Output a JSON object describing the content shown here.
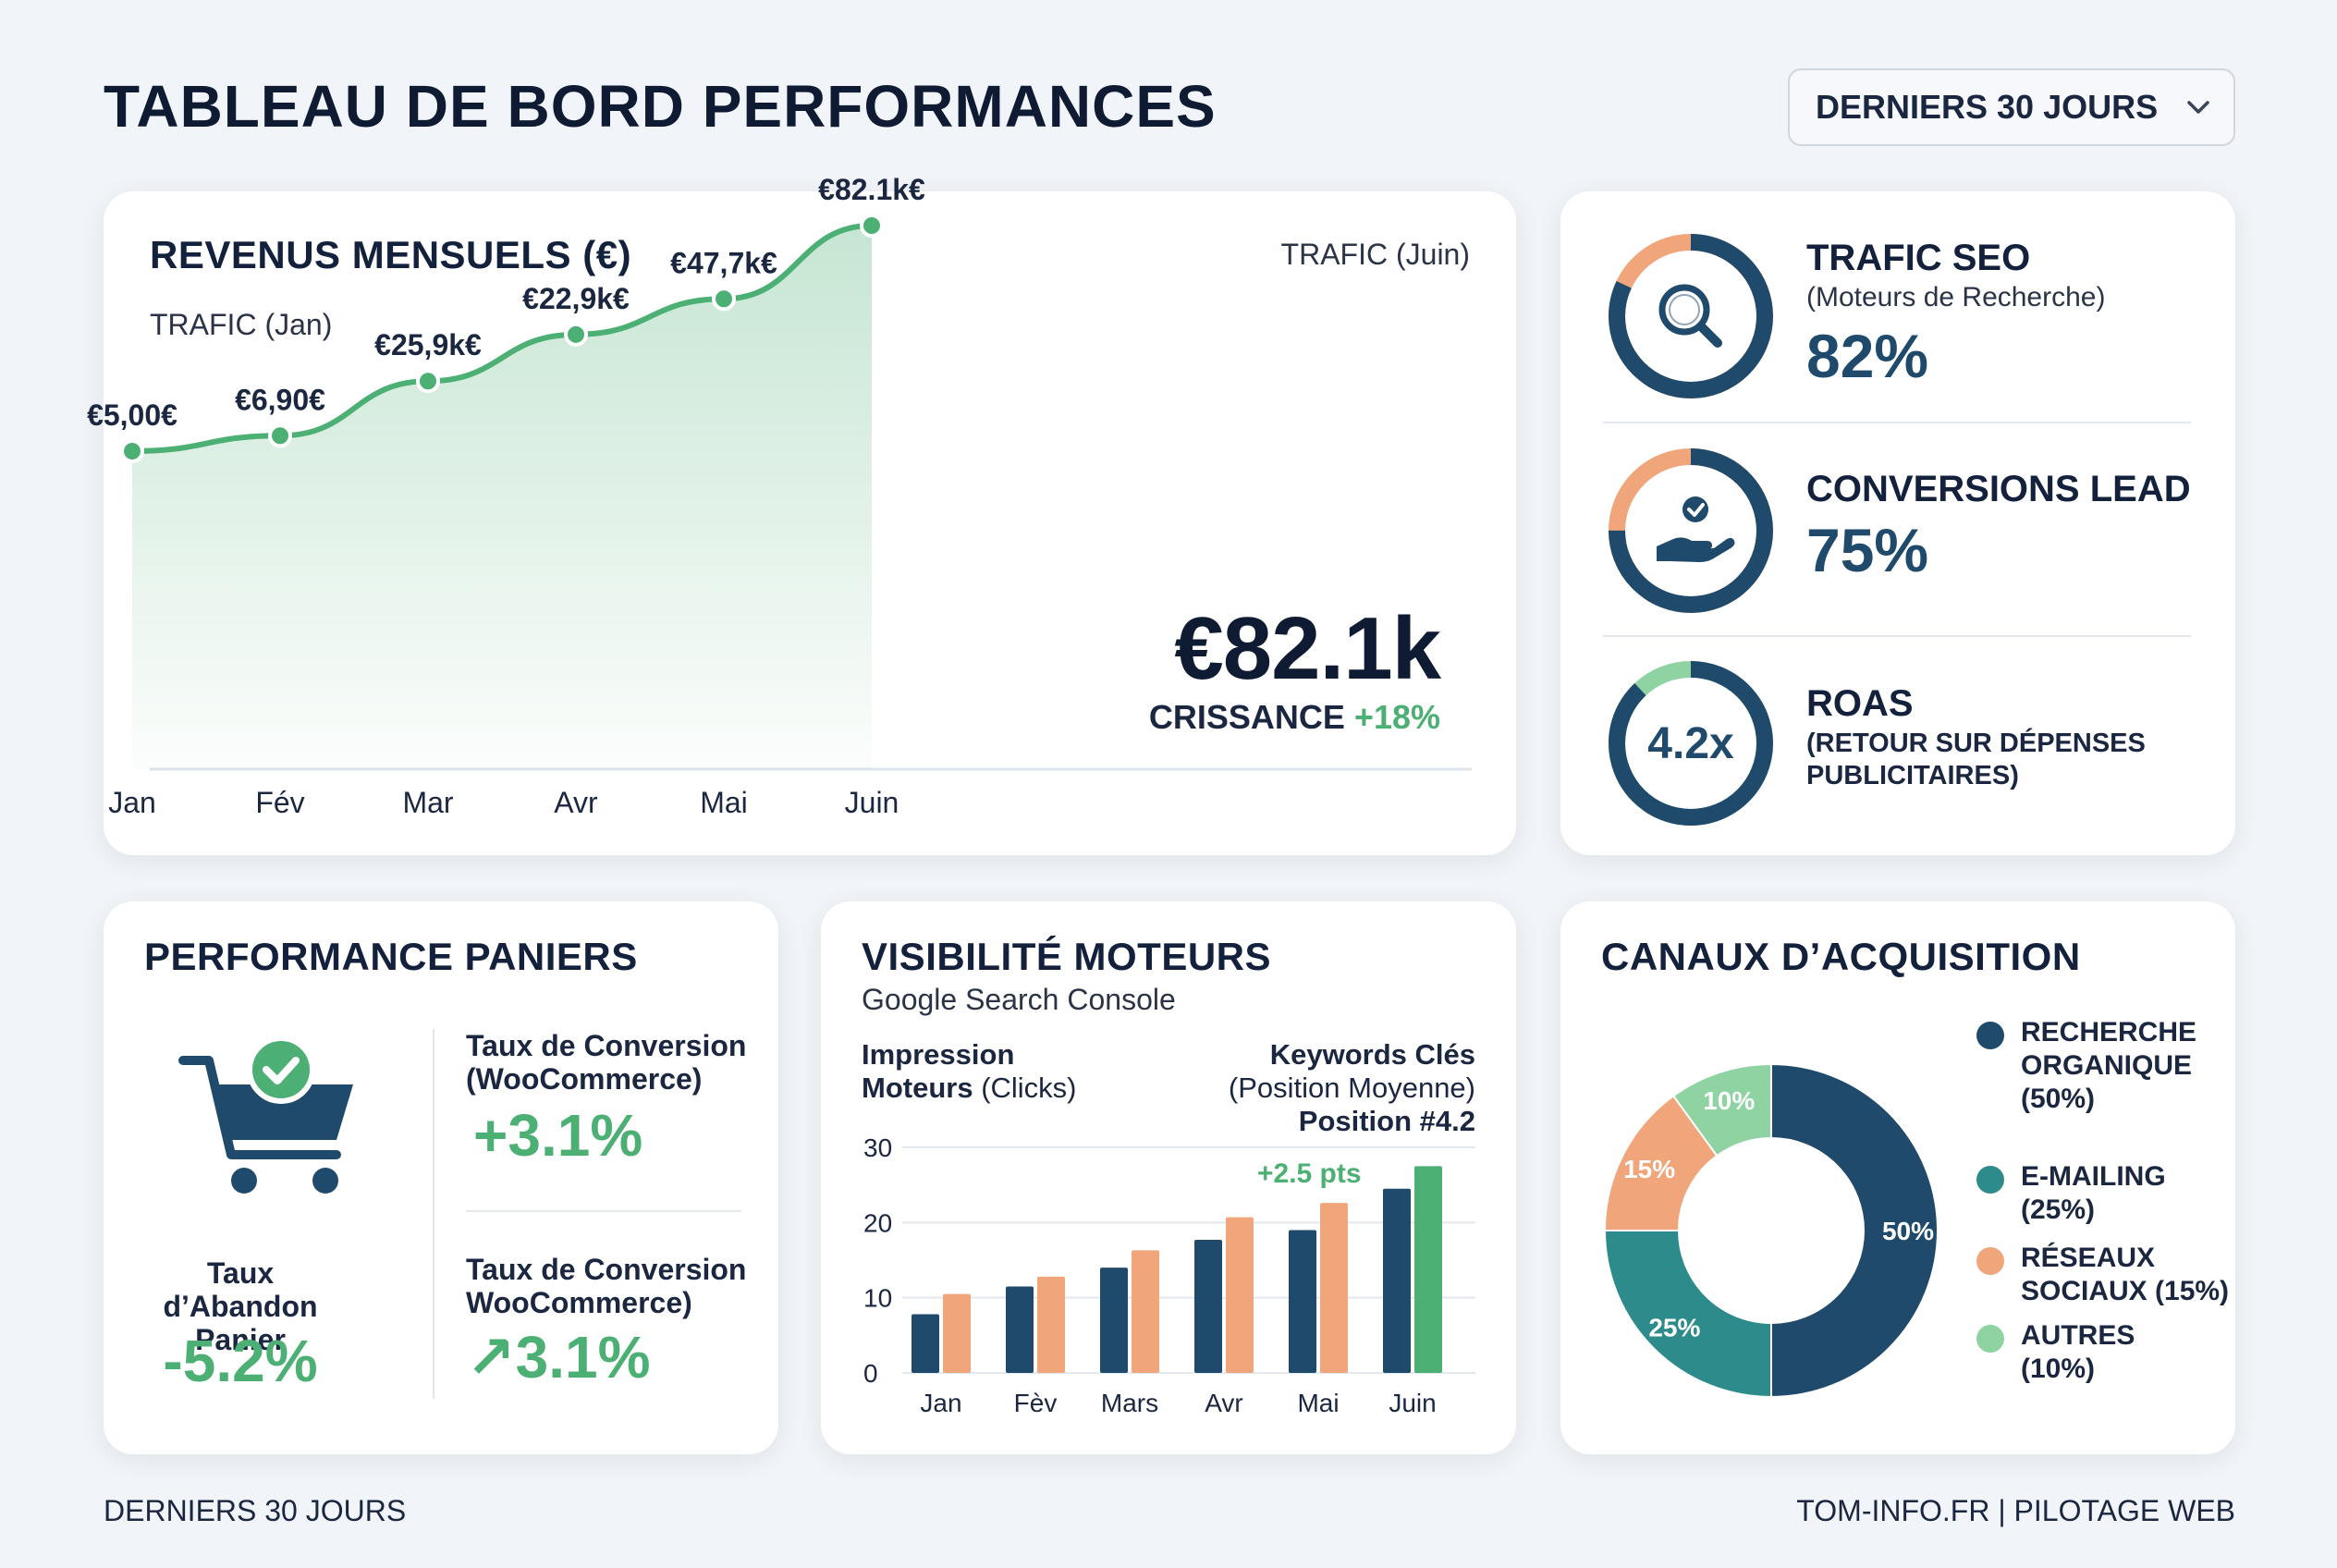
{
  "header": {
    "title": "TABLEAU DE BORD PERFORMANCES",
    "period_select": "DERNIERS 30 JOURS"
  },
  "footer": {
    "left": "DERNIERS 30 JOURS",
    "right": "TOM-INFO.FR | PILOTAGE WEB"
  },
  "revenue": {
    "title": "REVENUS MENSUELS (€)",
    "traffic_start": "TRAFIC (Jan)",
    "traffic_end": "TRAFIC (Juin)",
    "big_value": "€82.1k",
    "growth_label": "CRISSANCE",
    "growth_value": "+18%"
  },
  "kpis": {
    "seo": {
      "title": "TRAFIC SEO",
      "subtitle": "(Moteurs de Recherche)",
      "value": "82%",
      "percent": 82
    },
    "leads": {
      "title": "CONVERSIONS LEAD",
      "value": "75%",
      "percent": 75
    },
    "roas": {
      "title": "ROAS",
      "subtitle": "(RETOUR SUR DÉPENSES\nPUBLICITAIRES)",
      "value": "4.2x",
      "fill_percent": 88
    }
  },
  "baskets": {
    "title": "PERFORMANCE PANIERS",
    "abandon_label": "Taux d’Abandon\nPanier",
    "abandon_value": "-5.2%",
    "conv1_label": "Taux de Conversion\n(WooCommerce)",
    "conv1_value": "+3.1%",
    "conv2_label": "Taux de Conversion\nWooCommerce)",
    "conv2_value": "↗3.1%"
  },
  "visibility": {
    "title": "VISIBILITÉ MOTEURS",
    "subtitle": "Google Search Console",
    "impr_label_bold1": "Impression",
    "impr_label_bold2": "Moteurs",
    "impr_label_normal": " (Clicks)",
    "kw_label_bold": "Keywords Clés",
    "kw_label_normal": "(Position Moyenne)",
    "kw_position": "Position #4.2",
    "annotation": "+2.5 pts"
  },
  "acquisition": {
    "title": "CANAUX D’ACQUISITION",
    "legend": [
      {
        "label": "RECHERCHE\nORGANIQUE\n(50%)",
        "color": "#1f4a6b"
      },
      {
        "label": "E-MAILING\n(25%)",
        "color": "#2e8b8b"
      },
      {
        "label": "RÉSEAUX\nSOCIAUX (15%)",
        "color": "#f0a57a"
      },
      {
        "label": "AUTRES\n(10%)",
        "color": "#8fd3a3"
      }
    ]
  },
  "chart_data": [
    {
      "type": "area",
      "title": "REVENUS MENSUELS (€)",
      "categories": [
        "Jan",
        "Fév",
        "Mar",
        "Avr",
        "Mai",
        "Juin"
      ],
      "values": [
        5.0,
        6.9,
        25.9,
        22.9,
        47.7,
        82.1
      ],
      "data_labels": [
        "€5,00€",
        "€6,90€",
        "€25,9k€",
        "€22,9k€",
        "€47,7k€",
        "€82.1k€"
      ],
      "plotted_levels": [
        0,
        0.062,
        0.281,
        0.468,
        0.611,
        0.905
      ],
      "color": "#4caf73"
    },
    {
      "type": "bar",
      "title": "VISIBILITÉ MOTEURS",
      "categories": [
        "Jan",
        "Fèv",
        "Mars",
        "Avr",
        "Mai",
        "Juin"
      ],
      "ylim": [
        0,
        30
      ],
      "yticks": [
        "0",
        "10",
        "20",
        "30"
      ],
      "series": [
        {
          "name": "Impression Moteurs (Clicks)",
          "values": [
            7.8,
            11.5,
            14,
            17.7,
            19,
            24.5
          ],
          "color": "#1f4a6b"
        },
        {
          "name": "Keywords Clés (Position Moyenne)",
          "values": [
            10.5,
            12.8,
            16.3,
            20.7,
            22.6,
            27.5
          ],
          "color": "#f0a57a",
          "last_color": "#4caf73"
        }
      ]
    },
    {
      "type": "pie",
      "title": "CANAUX D’ACQUISITION",
      "categories": [
        "RECHERCHE ORGANIQUE",
        "E-MAILING",
        "RÉSEAUX SOCIAUX",
        "AUTRES"
      ],
      "values": [
        50,
        25,
        15,
        10
      ],
      "labels": [
        "50%",
        "25%",
        "15%",
        "10%"
      ],
      "colors": [
        "#1f4a6b",
        "#2e8b8b",
        "#f0a57a",
        "#8fd3a3"
      ]
    }
  ]
}
